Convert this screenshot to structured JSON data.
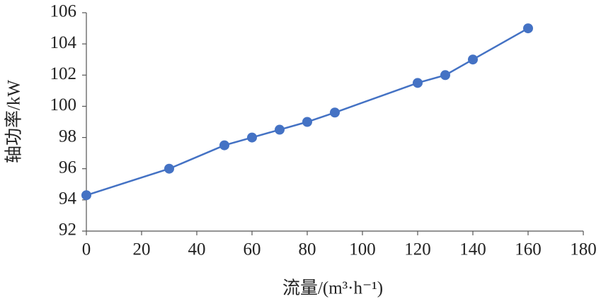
{
  "chart_data": {
    "type": "line",
    "x_label": "流量/(m³·h⁻¹)",
    "y_label": "轴功率/kW",
    "x": [
      0,
      30,
      50,
      60,
      70,
      80,
      90,
      120,
      130,
      140,
      160
    ],
    "series": [
      {
        "color": "#4472c4",
        "values": [
          94.3,
          96,
          97.5,
          98,
          98.5,
          99,
          99.6,
          101.5,
          102,
          103,
          105
        ]
      }
    ],
    "xlim": [
      0,
      180
    ],
    "xticks": [
      0,
      20,
      40,
      60,
      80,
      100,
      120,
      140,
      160,
      180
    ],
    "ylim": [
      92,
      106
    ],
    "yticks": [
      92,
      94,
      96,
      98,
      100,
      102,
      104,
      106
    ],
    "markers": true
  }
}
